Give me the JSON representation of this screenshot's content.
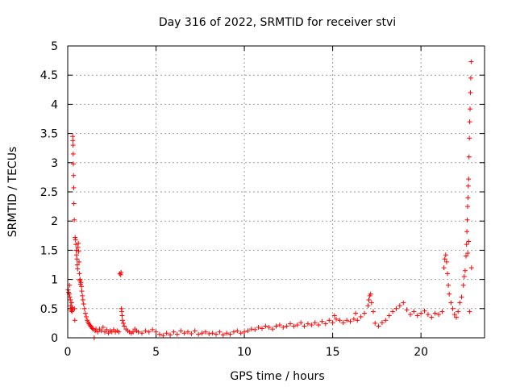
{
  "chart_data": {
    "type": "scatter",
    "title": "Day 316 of 2022, SRMTID for receiver stvi",
    "xlabel": "GPS time / hours",
    "ylabel": "SRMTID / TECUs",
    "xlim": [
      0,
      23.6
    ],
    "ylim": [
      0,
      5
    ],
    "grid": true,
    "marker": "+",
    "color": "#ff0000",
    "xticks": [
      0,
      5,
      10,
      15,
      20
    ],
    "yticks": [
      0,
      0.5,
      1,
      1.5,
      2,
      2.5,
      3,
      3.5,
      4,
      4.5,
      5
    ],
    "xtick_labels": [
      "0",
      "5",
      "10",
      "15",
      "20"
    ],
    "ytick_labels": [
      "0",
      "0.5",
      "1",
      "1.5",
      "2",
      "2.5",
      "3",
      "3.5",
      "4",
      "4.5",
      "5"
    ],
    "series": [
      {
        "name": "stvi",
        "points": [
          [
            0.02,
            0.82
          ],
          [
            0.05,
            0.78
          ],
          [
            0.08,
            0.75
          ],
          [
            0.1,
            0.9
          ],
          [
            0.12,
            0.7
          ],
          [
            0.15,
            0.65
          ],
          [
            0.17,
            0.55
          ],
          [
            0.19,
            0.5
          ],
          [
            0.2,
            0.47
          ],
          [
            0.22,
            0.6
          ],
          [
            0.24,
            0.45
          ],
          [
            0.25,
            0.52
          ],
          [
            0.27,
            0.48
          ],
          [
            0.28,
            3.45
          ],
          [
            0.29,
            3.38
          ],
          [
            0.3,
            3.3
          ],
          [
            0.31,
            3.15
          ],
          [
            0.32,
            2.98
          ],
          [
            0.33,
            2.78
          ],
          [
            0.34,
            2.57
          ],
          [
            0.35,
            2.3
          ],
          [
            0.37,
            2.02
          ],
          [
            0.38,
            0.5
          ],
          [
            0.4,
            0.3
          ],
          [
            0.42,
            1.72
          ],
          [
            0.44,
            1.68
          ],
          [
            0.46,
            1.6
          ],
          [
            0.48,
            1.5
          ],
          [
            0.5,
            1.42
          ],
          [
            0.52,
            1.35
          ],
          [
            0.54,
            1.25
          ],
          [
            0.56,
            1.18
          ],
          [
            0.58,
            1.55
          ],
          [
            0.6,
            1.62
          ],
          [
            0.62,
            1.48
          ],
          [
            0.64,
            1.3
          ],
          [
            0.66,
            1.1
          ],
          [
            0.68,
            0.98
          ],
          [
            0.7,
            1.0
          ],
          [
            0.72,
            0.92
          ],
          [
            0.75,
            0.95
          ],
          [
            0.78,
            0.88
          ],
          [
            0.8,
            0.8
          ],
          [
            0.83,
            0.72
          ],
          [
            0.86,
            0.65
          ],
          [
            0.9,
            0.58
          ],
          [
            0.95,
            0.5
          ],
          [
            1.0,
            0.42
          ],
          [
            1.05,
            0.36
          ],
          [
            1.1,
            0.3
          ],
          [
            1.15,
            0.27
          ],
          [
            1.2,
            0.24
          ],
          [
            1.25,
            0.22
          ],
          [
            1.3,
            0.2
          ],
          [
            1.35,
            0.18
          ],
          [
            1.4,
            0.16
          ],
          [
            1.45,
            0.15
          ],
          [
            1.5,
            0.0
          ],
          [
            1.55,
            0.12
          ],
          [
            1.6,
            0.15
          ],
          [
            1.7,
            0.1
          ],
          [
            1.8,
            0.15
          ],
          [
            1.9,
            0.12
          ],
          [
            2.0,
            0.18
          ],
          [
            2.1,
            0.1
          ],
          [
            2.2,
            0.14
          ],
          [
            2.3,
            0.08
          ],
          [
            2.4,
            0.12
          ],
          [
            2.5,
            0.1
          ],
          [
            2.6,
            0.14
          ],
          [
            2.7,
            0.1
          ],
          [
            2.8,
            0.12
          ],
          [
            2.9,
            0.1
          ],
          [
            2.95,
            1.1
          ],
          [
            3.0,
            1.08
          ],
          [
            3.02,
            1.12
          ],
          [
            3.04,
            0.5
          ],
          [
            3.06,
            0.45
          ],
          [
            3.08,
            0.38
          ],
          [
            3.1,
            0.3
          ],
          [
            3.15,
            0.25
          ],
          [
            3.2,
            0.2
          ],
          [
            3.3,
            0.15
          ],
          [
            3.4,
            0.12
          ],
          [
            3.5,
            0.1
          ],
          [
            3.6,
            0.08
          ],
          [
            3.7,
            0.1
          ],
          [
            3.8,
            0.15
          ],
          [
            3.9,
            0.12
          ],
          [
            4.0,
            0.1
          ],
          [
            4.2,
            0.08
          ],
          [
            4.4,
            0.12
          ],
          [
            4.6,
            0.1
          ],
          [
            4.8,
            0.14
          ],
          [
            5.0,
            0.1
          ],
          [
            5.2,
            0.06
          ],
          [
            5.4,
            0.04
          ],
          [
            5.6,
            0.08
          ],
          [
            5.8,
            0.05
          ],
          [
            6.0,
            0.1
          ],
          [
            6.2,
            0.06
          ],
          [
            6.4,
            0.12
          ],
          [
            6.6,
            0.08
          ],
          [
            6.8,
            0.1
          ],
          [
            7.0,
            0.07
          ],
          [
            7.2,
            0.12
          ],
          [
            7.4,
            0.06
          ],
          [
            7.6,
            0.08
          ],
          [
            7.8,
            0.1
          ],
          [
            8.0,
            0.07
          ],
          [
            8.2,
            0.08
          ],
          [
            8.4,
            0.06
          ],
          [
            8.6,
            0.1
          ],
          [
            8.8,
            0.05
          ],
          [
            9.0,
            0.08
          ],
          [
            9.2,
            0.06
          ],
          [
            9.4,
            0.1
          ],
          [
            9.6,
            0.12
          ],
          [
            9.8,
            0.08
          ],
          [
            10.0,
            0.1
          ],
          [
            10.2,
            0.12
          ],
          [
            10.4,
            0.15
          ],
          [
            10.6,
            0.14
          ],
          [
            10.8,
            0.18
          ],
          [
            11.0,
            0.16
          ],
          [
            11.2,
            0.2
          ],
          [
            11.4,
            0.18
          ],
          [
            11.6,
            0.15
          ],
          [
            11.8,
            0.2
          ],
          [
            12.0,
            0.22
          ],
          [
            12.2,
            0.18
          ],
          [
            12.4,
            0.2
          ],
          [
            12.6,
            0.24
          ],
          [
            12.8,
            0.2
          ],
          [
            13.0,
            0.22
          ],
          [
            13.2,
            0.26
          ],
          [
            13.4,
            0.2
          ],
          [
            13.6,
            0.24
          ],
          [
            13.8,
            0.22
          ],
          [
            14.0,
            0.26
          ],
          [
            14.2,
            0.22
          ],
          [
            14.4,
            0.28
          ],
          [
            14.6,
            0.24
          ],
          [
            14.8,
            0.3
          ],
          [
            15.0,
            0.26
          ],
          [
            15.1,
            0.38
          ],
          [
            15.2,
            0.32
          ],
          [
            15.4,
            0.3
          ],
          [
            15.6,
            0.26
          ],
          [
            15.8,
            0.3
          ],
          [
            16.0,
            0.28
          ],
          [
            16.2,
            0.32
          ],
          [
            16.3,
            0.42
          ],
          [
            16.4,
            0.3
          ],
          [
            16.6,
            0.36
          ],
          [
            16.8,
            0.42
          ],
          [
            17.0,
            0.55
          ],
          [
            17.05,
            0.65
          ],
          [
            17.1,
            0.72
          ],
          [
            17.15,
            0.75
          ],
          [
            17.2,
            0.6
          ],
          [
            17.3,
            0.45
          ],
          [
            17.4,
            0.25
          ],
          [
            17.6,
            0.2
          ],
          [
            17.8,
            0.26
          ],
          [
            18.0,
            0.3
          ],
          [
            18.2,
            0.38
          ],
          [
            18.4,
            0.45
          ],
          [
            18.6,
            0.5
          ],
          [
            18.8,
            0.55
          ],
          [
            19.0,
            0.6
          ],
          [
            19.2,
            0.48
          ],
          [
            19.4,
            0.4
          ],
          [
            19.6,
            0.45
          ],
          [
            19.8,
            0.38
          ],
          [
            20.0,
            0.42
          ],
          [
            20.2,
            0.46
          ],
          [
            20.4,
            0.4
          ],
          [
            20.6,
            0.35
          ],
          [
            20.8,
            0.42
          ],
          [
            21.0,
            0.4
          ],
          [
            21.2,
            0.45
          ],
          [
            21.3,
            1.2
          ],
          [
            21.35,
            1.35
          ],
          [
            21.4,
            1.42
          ],
          [
            21.45,
            1.3
          ],
          [
            21.5,
            1.1
          ],
          [
            21.55,
            0.9
          ],
          [
            21.6,
            0.75
          ],
          [
            21.7,
            0.6
          ],
          [
            21.8,
            0.5
          ],
          [
            21.9,
            0.4
          ],
          [
            22.0,
            0.35
          ],
          [
            22.1,
            0.45
          ],
          [
            22.2,
            0.6
          ],
          [
            22.3,
            0.7
          ],
          [
            22.4,
            0.9
          ],
          [
            22.45,
            1.05
          ],
          [
            22.5,
            1.15
          ],
          [
            22.55,
            1.4
          ],
          [
            22.58,
            1.6
          ],
          [
            22.6,
            1.82
          ],
          [
            22.62,
            2.02
          ],
          [
            22.64,
            2.25
          ],
          [
            22.66,
            2.4
          ],
          [
            22.68,
            2.6
          ],
          [
            22.7,
            2.72
          ],
          [
            22.72,
            3.1
          ],
          [
            22.74,
            3.42
          ],
          [
            22.76,
            3.7
          ],
          [
            22.78,
            3.92
          ],
          [
            22.8,
            4.2
          ],
          [
            22.82,
            4.45
          ],
          [
            22.84,
            4.73
          ],
          [
            22.86,
            1.2
          ],
          [
            22.75,
            0.45
          ],
          [
            22.7,
            1.65
          ],
          [
            22.65,
            1.45
          ]
        ]
      }
    ]
  }
}
